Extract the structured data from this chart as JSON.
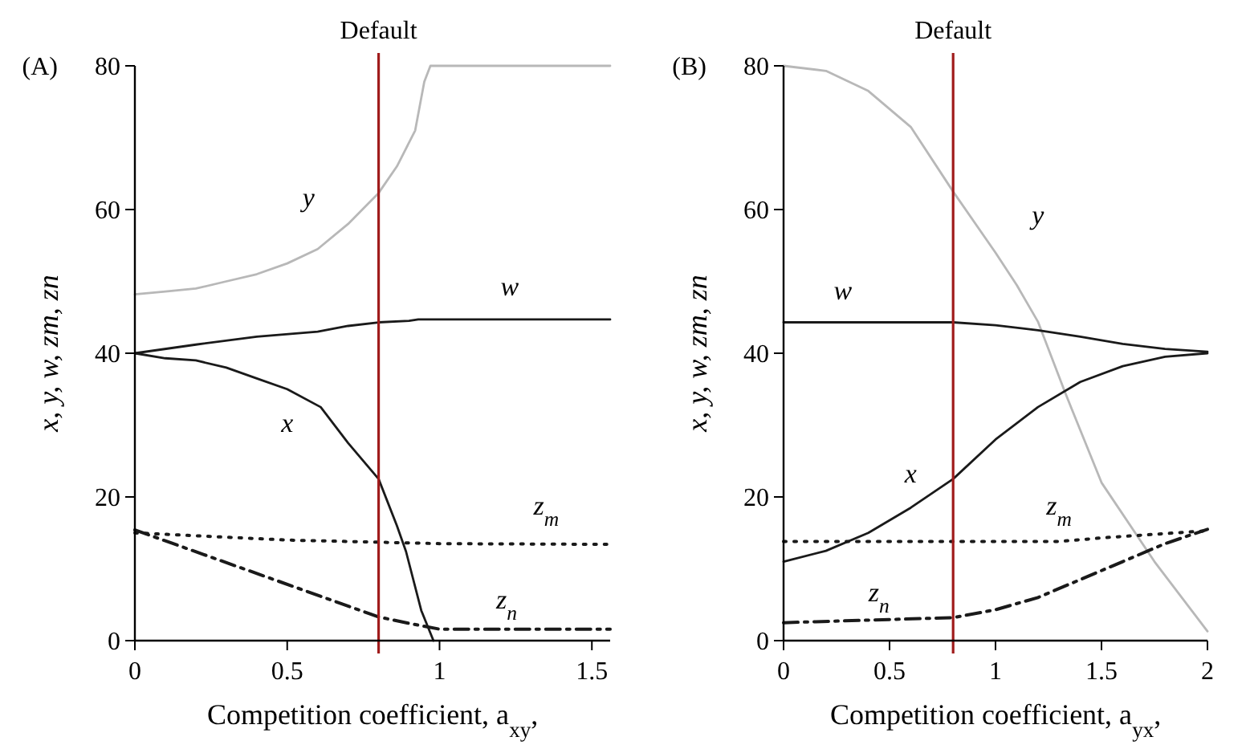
{
  "chart_data": [
    {
      "type": "line",
      "title": "(A)",
      "xlabel": "Competition coefficient, a$_{xy}$,",
      "ylabel": "x, y, w, zm, zn",
      "xlim": [
        0,
        1.56
      ],
      "xticks": [
        0,
        0.5,
        1,
        1.5
      ],
      "ylim": [
        0,
        80
      ],
      "yticks": [
        0,
        20,
        40,
        60,
        80
      ],
      "grid": false,
      "ref_lines": [
        {
          "axis": "x",
          "value": 0.8,
          "label": "Default",
          "color": "#a01c1c"
        }
      ],
      "series": [
        {
          "name": "y",
          "color": "#b8b8b8",
          "line_style": "solid",
          "x": [
            0,
            0.1,
            0.2,
            0.3,
            0.4,
            0.5,
            0.6,
            0.7,
            0.8,
            0.86,
            0.92,
            0.95,
            0.97,
            1.56
          ],
          "values": [
            48.2,
            48.6,
            49,
            50,
            51,
            52.5,
            54.5,
            58,
            62.3,
            66,
            71,
            77.8,
            80,
            80
          ]
        },
        {
          "name": "w",
          "color": "#1a1a1a",
          "line_style": "solid",
          "x": [
            0,
            0.2,
            0.4,
            0.6,
            0.7,
            0.8,
            0.9,
            0.93,
            1.56
          ],
          "values": [
            40,
            41.2,
            42.3,
            43,
            43.8,
            44.3,
            44.5,
            44.7,
            44.7
          ]
        },
        {
          "name": "x",
          "color": "#1a1a1a",
          "line_style": "solid",
          "x": [
            0,
            0.1,
            0.2,
            0.3,
            0.4,
            0.5,
            0.61,
            0.7,
            0.8,
            0.86,
            0.89,
            0.94,
            0.98
          ],
          "values": [
            40,
            39.3,
            39,
            38,
            36.5,
            35,
            32.5,
            27.5,
            22.5,
            16,
            12.4,
            4.2,
            0
          ]
        },
        {
          "name": "z$_{m}$",
          "color": "#1a1a1a",
          "line_style": "dotted",
          "x": [
            0,
            0.5,
            1,
            1.56
          ],
          "values": [
            15,
            14,
            13.5,
            13.4
          ]
        },
        {
          "name": "z$_{n}$",
          "color": "#1a1a1a",
          "line_style": "dashed",
          "x": [
            0,
            0.8,
            0.9,
            1,
            1.56
          ],
          "values": [
            15.4,
            3.3,
            2.4,
            1.6,
            1.6
          ]
        }
      ]
    },
    {
      "type": "line",
      "title": "(B)",
      "xlabel": "Competition coefficient, a$_{yx}$,",
      "ylabel": "x, y, w, zm, zn",
      "xlim": [
        0,
        2
      ],
      "xticks": [
        0,
        0.5,
        1,
        1.5,
        2
      ],
      "ylim": [
        0,
        80
      ],
      "yticks": [
        0,
        20,
        40,
        60,
        80
      ],
      "grid": false,
      "ref_lines": [
        {
          "axis": "x",
          "value": 0.8,
          "label": "Default",
          "color": "#a01c1c"
        }
      ],
      "series": [
        {
          "name": "y",
          "color": "#b8b8b8",
          "line_style": "solid",
          "x": [
            0,
            0.2,
            0.4,
            0.6,
            0.8,
            1,
            1.1,
            1.2,
            1.33,
            1.5,
            1.75,
            2
          ],
          "values": [
            80,
            79.3,
            76.5,
            71.5,
            62.5,
            54,
            49.5,
            44.4,
            34.4,
            22,
            11,
            1.3
          ]
        },
        {
          "name": "w",
          "color": "#1a1a1a",
          "line_style": "solid",
          "x": [
            0,
            0.8,
            1,
            1.2,
            1.4,
            1.6,
            1.8,
            2
          ],
          "values": [
            44.3,
            44.3,
            43.9,
            43.2,
            42.3,
            41.3,
            40.6,
            40.2
          ]
        },
        {
          "name": "x",
          "color": "#1a1a1a",
          "line_style": "solid",
          "x": [
            0,
            0.2,
            0.4,
            0.6,
            0.8,
            1,
            1.2,
            1.4,
            1.6,
            1.8,
            2
          ],
          "values": [
            11,
            12.5,
            15,
            18.5,
            22.5,
            28,
            32.5,
            36,
            38.2,
            39.5,
            40
          ]
        },
        {
          "name": "z$_{m}$",
          "color": "#1a1a1a",
          "line_style": "dotted",
          "x": [
            0,
            1.3,
            1.5,
            1.75,
            2
          ],
          "values": [
            13.8,
            13.8,
            14.3,
            14.8,
            15.3
          ]
        },
        {
          "name": "z$_{n}$",
          "color": "#1a1a1a",
          "line_style": "dashed",
          "x": [
            0,
            0.8,
            1,
            1.2,
            1.4,
            1.6,
            1.8,
            2
          ],
          "values": [
            2.5,
            3.2,
            4.3,
            6,
            8.5,
            11,
            13.5,
            15.5
          ]
        }
      ]
    }
  ]
}
